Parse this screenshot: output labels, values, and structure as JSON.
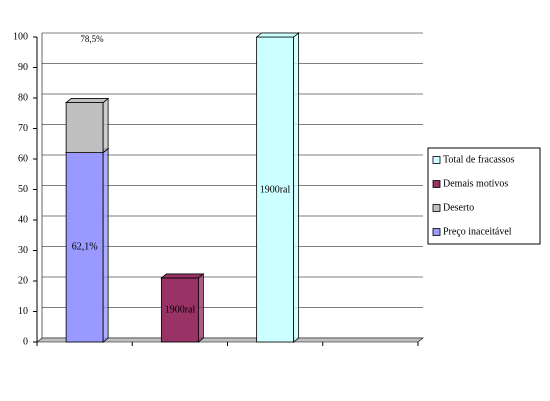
{
  "chart_data": {
    "type": "bar",
    "stacked": true,
    "categories": [
      null,
      null,
      null,
      null
    ],
    "series": [
      {
        "name": "Preço inaceitável",
        "color": "#9999ff",
        "values": [
          62.1,
          null,
          null,
          null
        ],
        "value_labels": [
          "62,1%",
          null,
          null,
          null
        ]
      },
      {
        "name": "Deserto",
        "color": "#c0c0c0",
        "values": [
          16.4,
          null,
          null,
          null
        ]
      },
      {
        "name": "Demais motivos",
        "color": "#993366",
        "values": [
          null,
          21,
          null,
          null
        ]
      },
      {
        "name": "Total de fracassos",
        "color": "#ccffff",
        "values": [
          null,
          null,
          100,
          null
        ]
      }
    ],
    "annotations": [
      "78,5%",
      "1900ral",
      "1900ral"
    ],
    "ylim": [
      0,
      100
    ],
    "yticks": [
      0,
      10,
      20,
      30,
      40,
      50,
      60,
      70,
      80,
      90,
      100
    ],
    "grid": true,
    "legend": "right"
  }
}
